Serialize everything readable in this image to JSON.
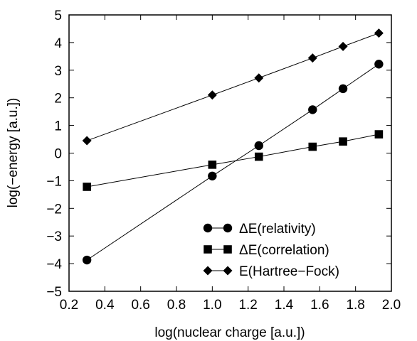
{
  "chart_data": {
    "type": "line",
    "title": "",
    "xlabel": "log(nuclear charge [a.u.])",
    "ylabel": "log(−energy [a.u.])",
    "xlim": [
      0.2,
      2.0
    ],
    "ylim": [
      -5,
      5
    ],
    "xticks": [
      "0.2",
      "0.4",
      "0.6",
      "0.8",
      "1.0",
      "1.2",
      "1.4",
      "1.6",
      "1.8",
      "2.0"
    ],
    "yticks": [
      "−5",
      "−4",
      "−3",
      "−2",
      "−1",
      "0",
      "1",
      "2",
      "3",
      "4",
      "5"
    ],
    "grid": false,
    "legend_position": "bottom-right",
    "series": [
      {
        "name": "ΔE(relativity)",
        "marker": "circle",
        "x": [
          0.3,
          1.0,
          1.26,
          1.56,
          1.73,
          1.93
        ],
        "y": [
          -3.87,
          -0.83,
          0.27,
          1.57,
          2.33,
          3.22
        ]
      },
      {
        "name": "ΔE(correlation)",
        "marker": "square",
        "x": [
          0.3,
          1.0,
          1.26,
          1.56,
          1.73,
          1.93
        ],
        "y": [
          -1.22,
          -0.42,
          -0.13,
          0.23,
          0.42,
          0.68
        ]
      },
      {
        "name": "E(Hartree−Fock)",
        "marker": "diamond",
        "x": [
          0.3,
          1.0,
          1.26,
          1.56,
          1.73,
          1.93
        ],
        "y": [
          0.45,
          2.1,
          2.72,
          3.44,
          3.86,
          4.34
        ]
      }
    ]
  }
}
